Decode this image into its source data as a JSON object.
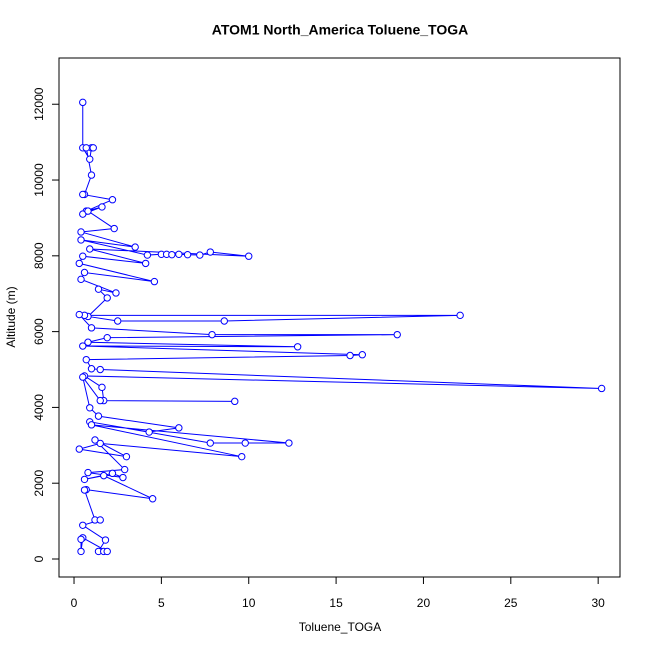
{
  "chart_data": {
    "type": "line",
    "markers": true,
    "color": "#0000ff",
    "title": "ATOM1 North_America Toluene_TOGA",
    "x_label": "Toluene_TOGA",
    "y_label": "Altitude (m)",
    "x": [
      0.5,
      0.5,
      0.9,
      1.0,
      1.1,
      0.7,
      1.0,
      0.6,
      0.5,
      2.2,
      0.7,
      1.6,
      0.5,
      0.8,
      2.3,
      0.4,
      3.5,
      0.4,
      4.2,
      5.0,
      5.3,
      5.6,
      6.0,
      6.5,
      7.2,
      7.8,
      10.0,
      0.9,
      4.1,
      0.5,
      0.3,
      4.6,
      0.6,
      0.4,
      2.4,
      1.4,
      1.9,
      0.8,
      2.5,
      8.6,
      22.1,
      0.6,
      0.3,
      1.0,
      7.9,
      18.5,
      1.9,
      0.8,
      12.8,
      0.5,
      16.5,
      15.8,
      0.7,
      1.0,
      1.5,
      30.2,
      0.6,
      1.6,
      1.7,
      9.2,
      1.5,
      0.5,
      0.9,
      1.4,
      6.0,
      4.3,
      0.9,
      7.8,
      9.8,
      12.3,
      1.0,
      9.6,
      1.5,
      0.3,
      3.0,
      1.2,
      2.9,
      0.8,
      2.8,
      2.2,
      0.6,
      1.7,
      4.5,
      0.7,
      0.6,
      1.2,
      1.5,
      0.5,
      1.8,
      1.4,
      1.7,
      1.9,
      0.5,
      0.4,
      0.4
    ],
    "values": [
      12050,
      10850,
      10550,
      10850,
      10850,
      10850,
      10130,
      9620,
      9620,
      9480,
      9180,
      9290,
      9100,
      9180,
      8720,
      8630,
      8230,
      8420,
      8020,
      8040,
      8040,
      8030,
      8040,
      8030,
      8020,
      8100,
      7990,
      8180,
      7800,
      7990,
      7800,
      7320,
      7560,
      7380,
      7020,
      7120,
      6890,
      6400,
      6280,
      6280,
      6430,
      6430,
      6450,
      6100,
      5920,
      5920,
      5840,
      5720,
      5600,
      5620,
      5390,
      5370,
      5260,
      5020,
      5000,
      4500,
      4830,
      4530,
      4180,
      4160,
      4180,
      4800,
      3990,
      3770,
      3460,
      3350,
      3620,
      3060,
      3060,
      3060,
      3540,
      2700,
      3050,
      2900,
      2700,
      3140,
      2360,
      2280,
      2150,
      2260,
      2100,
      2200,
      1590,
      1830,
      1820,
      1030,
      1030,
      890,
      500,
      200,
      200,
      200,
      560,
      200,
      520
    ],
    "xlim": [
      -0.86,
      31.25
    ],
    "ylim": [
      -475,
      13220
    ],
    "xticks": [
      0,
      5,
      10,
      15,
      20,
      25,
      30
    ],
    "yticks": [
      0,
      2000,
      4000,
      6000,
      8000,
      10000,
      12000
    ]
  }
}
